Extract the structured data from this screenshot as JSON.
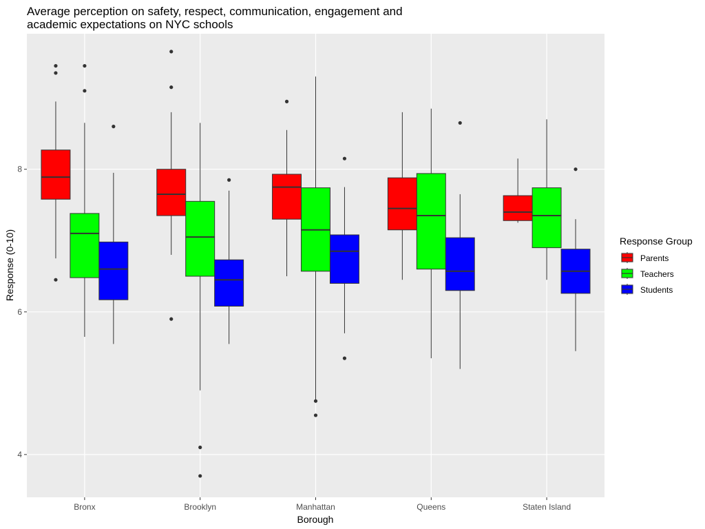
{
  "chart_data": {
    "type": "boxplot",
    "title_lines": [
      "Average perception on safety, respect, communication, engagement and",
      "academic expectations on NYC schools"
    ],
    "xlabel": "Borough",
    "ylabel": "Response (0-10)",
    "ylim": [
      3.4,
      9.9
    ],
    "y_ticks": [
      4,
      6,
      8
    ],
    "grid": true,
    "legend_placement": "right",
    "legend_title": "Response Group",
    "categories": [
      "Bronx",
      "Brooklyn",
      "Manhattan",
      "Queens",
      "Staten Island"
    ],
    "series": [
      {
        "name": "Parents",
        "color": "#ff0000",
        "boxes": [
          {
            "whisker_low": 6.75,
            "q1": 7.58,
            "median": 7.89,
            "q3": 8.27,
            "whisker_high": 8.95,
            "outliers": [
              9.45,
              9.35,
              6.45
            ]
          },
          {
            "whisker_low": 6.8,
            "q1": 7.35,
            "median": 7.65,
            "q3": 8.0,
            "whisker_high": 8.8,
            "outliers": [
              9.65,
              9.15,
              5.9
            ]
          },
          {
            "whisker_low": 6.5,
            "q1": 7.3,
            "median": 7.75,
            "q3": 7.93,
            "whisker_high": 8.55,
            "outliers": [
              8.95
            ]
          },
          {
            "whisker_low": 6.45,
            "q1": 7.15,
            "median": 7.45,
            "q3": 7.88,
            "whisker_high": 8.8,
            "outliers": []
          },
          {
            "whisker_low": 7.25,
            "q1": 7.28,
            "median": 7.4,
            "q3": 7.63,
            "whisker_high": 8.15,
            "outliers": []
          }
        ]
      },
      {
        "name": "Teachers",
        "color": "#00ff00",
        "boxes": [
          {
            "whisker_low": 5.65,
            "q1": 6.48,
            "median": 7.1,
            "q3": 7.38,
            "whisker_high": 8.65,
            "outliers": [
              9.45,
              9.1
            ]
          },
          {
            "whisker_low": 4.9,
            "q1": 6.5,
            "median": 7.05,
            "q3": 7.55,
            "whisker_high": 8.65,
            "outliers": [
              4.1,
              3.7
            ]
          },
          {
            "whisker_low": 4.75,
            "q1": 6.57,
            "median": 7.15,
            "q3": 7.74,
            "whisker_high": 9.3,
            "outliers": [
              4.75,
              4.55
            ]
          },
          {
            "whisker_low": 5.35,
            "q1": 6.6,
            "median": 7.35,
            "q3": 7.94,
            "whisker_high": 8.85,
            "outliers": []
          },
          {
            "whisker_low": 6.45,
            "q1": 6.9,
            "median": 7.35,
            "q3": 7.74,
            "whisker_high": 8.7,
            "outliers": []
          }
        ]
      },
      {
        "name": "Students",
        "color": "#0000ff",
        "boxes": [
          {
            "whisker_low": 5.55,
            "q1": 6.17,
            "median": 6.6,
            "q3": 6.98,
            "whisker_high": 7.95,
            "outliers": [
              8.6
            ]
          },
          {
            "whisker_low": 5.55,
            "q1": 6.08,
            "median": 6.45,
            "q3": 6.73,
            "whisker_high": 7.7,
            "outliers": [
              7.85
            ]
          },
          {
            "whisker_low": 5.7,
            "q1": 6.4,
            "median": 6.85,
            "q3": 7.08,
            "whisker_high": 7.75,
            "outliers": [
              8.15,
              5.35
            ]
          },
          {
            "whisker_low": 5.2,
            "q1": 6.3,
            "median": 6.57,
            "q3": 7.04,
            "whisker_high": 7.65,
            "outliers": [
              8.65
            ]
          },
          {
            "whisker_low": 5.45,
            "q1": 6.26,
            "median": 6.57,
            "q3": 6.88,
            "whisker_high": 7.3,
            "outliers": [
              8.0
            ]
          }
        ]
      }
    ],
    "legend_order": [
      0,
      1,
      2
    ]
  }
}
